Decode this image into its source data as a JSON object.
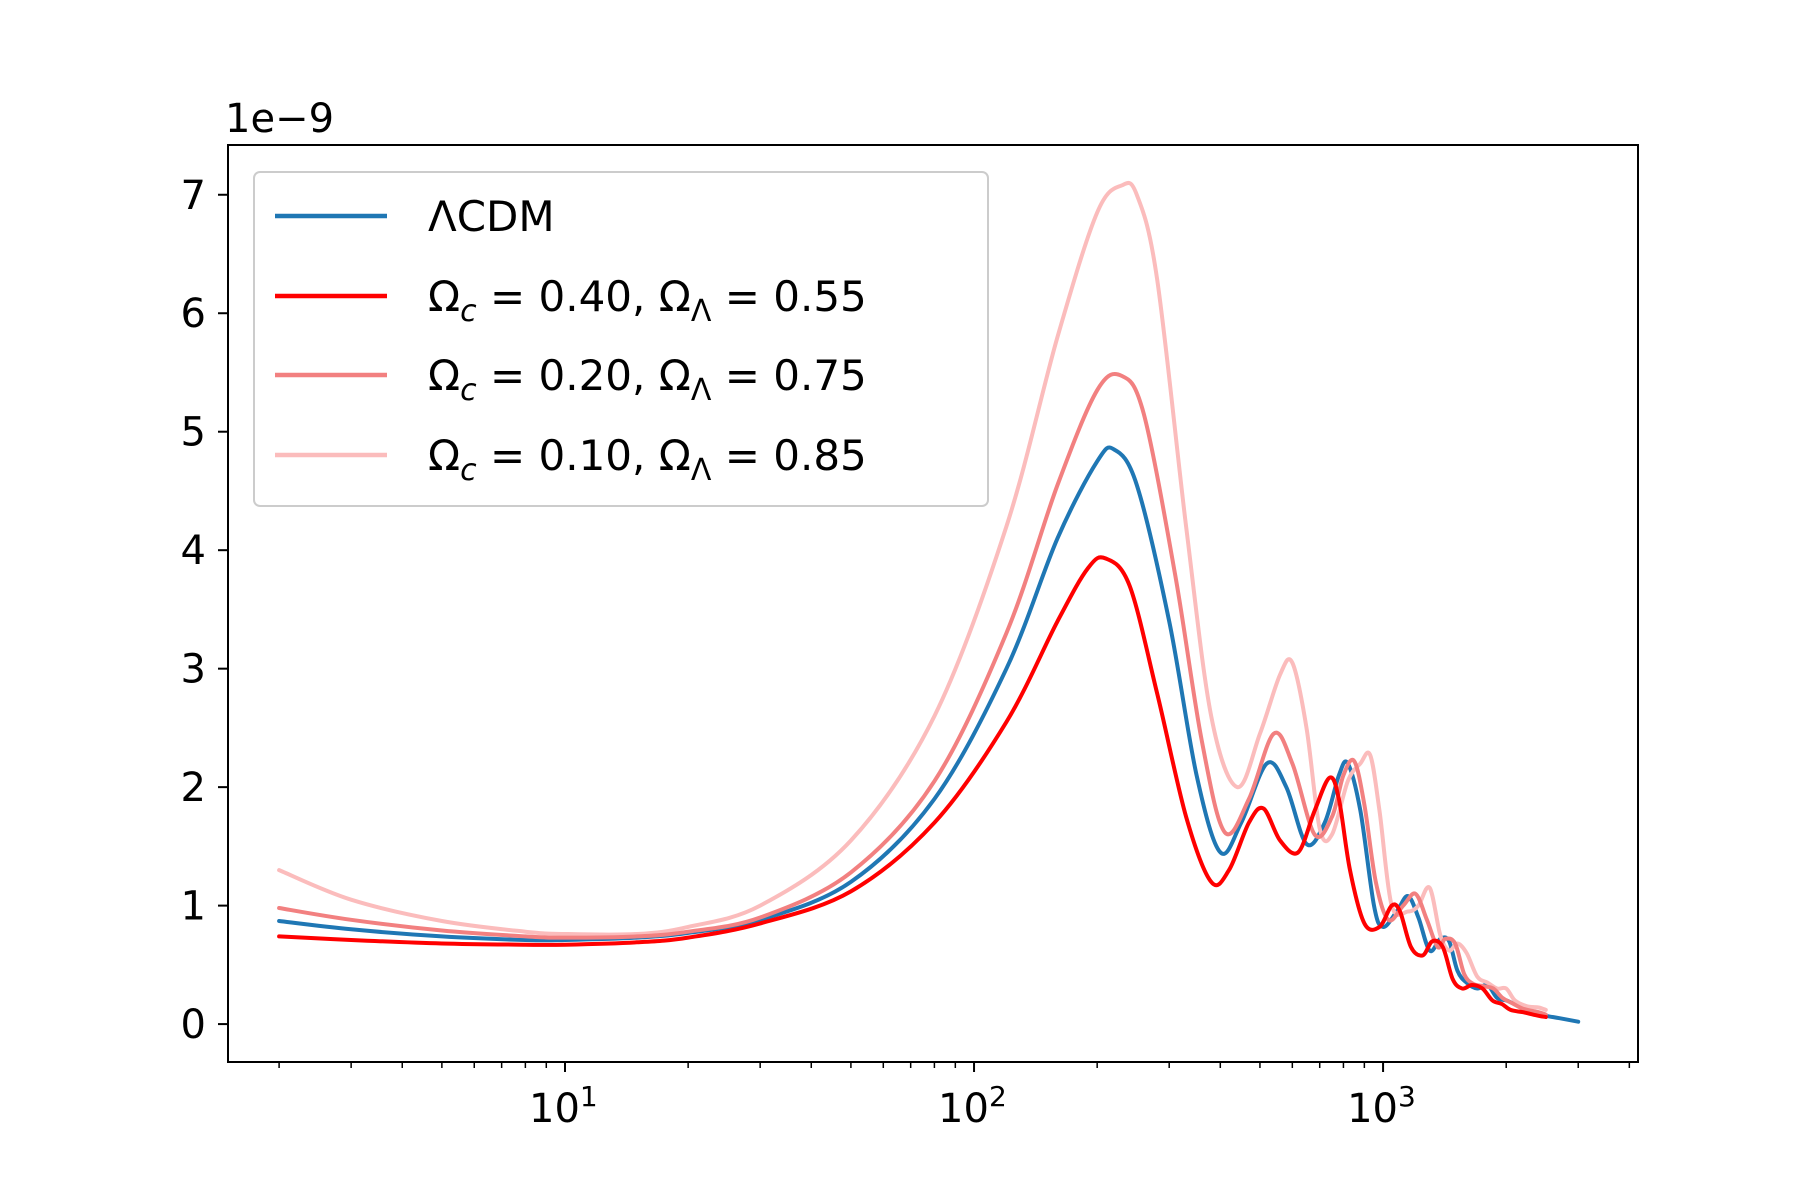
{
  "chart_data": {
    "type": "line",
    "xscale": "log",
    "xlim": [
      1.5,
      4200
    ],
    "ylim": [
      -0.32,
      7.42
    ],
    "y_multiplier": "1e−9",
    "xlabel": "",
    "ylabel": "",
    "title": "",
    "x_ticks": [
      {
        "base": "10",
        "exp": "1",
        "value": 10
      },
      {
        "base": "10",
        "exp": "2",
        "value": 100
      },
      {
        "base": "10",
        "exp": "3",
        "value": 1000
      }
    ],
    "y_ticks": [
      "0",
      "1",
      "2",
      "3",
      "4",
      "5",
      "6",
      "7"
    ],
    "grid": false,
    "legend_position": "upper-left",
    "series": [
      {
        "name": "ΛCDM",
        "color": "#1f77b4",
        "x": [
          2,
          3,
          5,
          8,
          10,
          15,
          20,
          30,
          50,
          80,
          120,
          160,
          200,
          220,
          250,
          300,
          350,
          400,
          450,
          520,
          580,
          650,
          720,
          780,
          820,
          880,
          950,
          1000,
          1080,
          1150,
          1220,
          1300,
          1380,
          1450,
          1520,
          1600,
          1700,
          1800,
          1900,
          2000,
          2150,
          2300,
          2500,
          2700,
          3000
        ],
        "y": [
          0.87,
          0.8,
          0.74,
          0.71,
          0.71,
          0.73,
          0.77,
          0.88,
          1.2,
          1.9,
          3.0,
          4.1,
          4.75,
          4.85,
          4.55,
          3.4,
          2.1,
          1.45,
          1.7,
          2.2,
          2.0,
          1.52,
          1.7,
          2.1,
          2.2,
          1.8,
          1.0,
          0.82,
          0.95,
          1.08,
          0.9,
          0.62,
          0.72,
          0.7,
          0.45,
          0.35,
          0.3,
          0.33,
          0.22,
          0.2,
          0.15,
          0.1,
          0.07,
          0.05,
          0.02
        ]
      },
      {
        "name": "Ω_c = 0.40, Ω_Λ = 0.55",
        "name_parts": [
          "Ω",
          "c",
          " = 0.40, Ω",
          "Λ",
          " = 0.55"
        ],
        "color": "#ff0000",
        "x": [
          2,
          3,
          5,
          8,
          10,
          15,
          20,
          30,
          50,
          80,
          120,
          160,
          190,
          210,
          240,
          280,
          330,
          380,
          420,
          470,
          510,
          560,
          620,
          680,
          740,
          780,
          830,
          900,
          980,
          1050,
          1100,
          1170,
          1250,
          1320,
          1400,
          1480,
          1560,
          1650,
          1750,
          1850,
          1950,
          2050,
          2200,
          2400,
          2500
        ],
        "y": [
          0.74,
          0.71,
          0.68,
          0.67,
          0.67,
          0.69,
          0.73,
          0.85,
          1.12,
          1.7,
          2.55,
          3.4,
          3.85,
          3.93,
          3.7,
          2.8,
          1.75,
          1.2,
          1.3,
          1.7,
          1.82,
          1.55,
          1.45,
          1.8,
          2.08,
          1.9,
          1.3,
          0.85,
          0.82,
          1.0,
          0.95,
          0.65,
          0.58,
          0.7,
          0.65,
          0.38,
          0.3,
          0.33,
          0.3,
          0.2,
          0.17,
          0.12,
          0.1,
          0.07,
          0.06
        ]
      },
      {
        "name": "Ω_c = 0.20, Ω_Λ = 0.75",
        "name_parts": [
          "Ω",
          "c",
          " = 0.20, Ω",
          "Λ",
          " = 0.75"
        ],
        "color": "#f28080",
        "x": [
          2,
          3,
          5,
          8,
          10,
          15,
          20,
          30,
          50,
          80,
          120,
          160,
          200,
          230,
          260,
          310,
          360,
          410,
          470,
          540,
          600,
          680,
          750,
          800,
          850,
          900,
          960,
          1030,
          1120,
          1200,
          1280,
          1360,
          1420,
          1500,
          1580,
          1660,
          1760,
          1860,
          1960,
          2060,
          2200,
          2400,
          2500
        ],
        "y": [
          0.98,
          0.88,
          0.79,
          0.74,
          0.73,
          0.74,
          0.78,
          0.9,
          1.28,
          2.05,
          3.3,
          4.55,
          5.35,
          5.47,
          5.15,
          3.8,
          2.4,
          1.62,
          1.9,
          2.45,
          2.2,
          1.6,
          1.75,
          2.1,
          2.22,
          1.85,
          1.2,
          0.88,
          1.0,
          1.1,
          0.88,
          0.65,
          0.72,
          0.68,
          0.42,
          0.34,
          0.32,
          0.3,
          0.22,
          0.18,
          0.13,
          0.1,
          0.08
        ]
      },
      {
        "name": "Ω_c = 0.10, Ω_Λ = 0.85",
        "name_parts": [
          "Ω",
          "c",
          " = 0.10, Ω",
          "Λ",
          " = 0.85"
        ],
        "color": "#fbbcbc",
        "x": [
          2,
          3,
          5,
          8,
          10,
          15,
          20,
          30,
          50,
          80,
          120,
          160,
          200,
          230,
          250,
          280,
          330,
          380,
          440,
          500,
          560,
          600,
          650,
          700,
          750,
          820,
          880,
          930,
          980,
          1050,
          1150,
          1220,
          1300,
          1380,
          1450,
          1520,
          1600,
          1700,
          1800,
          1900,
          2000,
          2100,
          2250,
          2400,
          2500
        ],
        "y": [
          1.3,
          1.05,
          0.87,
          0.78,
          0.76,
          0.76,
          0.82,
          1.0,
          1.55,
          2.6,
          4.2,
          5.8,
          6.85,
          7.08,
          7.0,
          6.3,
          4.2,
          2.6,
          2.0,
          2.45,
          2.95,
          3.05,
          2.5,
          1.65,
          1.6,
          2.05,
          2.2,
          2.27,
          1.8,
          1.0,
          0.95,
          1.0,
          1.15,
          0.75,
          0.62,
          0.68,
          0.6,
          0.4,
          0.35,
          0.3,
          0.3,
          0.2,
          0.15,
          0.14,
          0.12
        ]
      }
    ]
  }
}
